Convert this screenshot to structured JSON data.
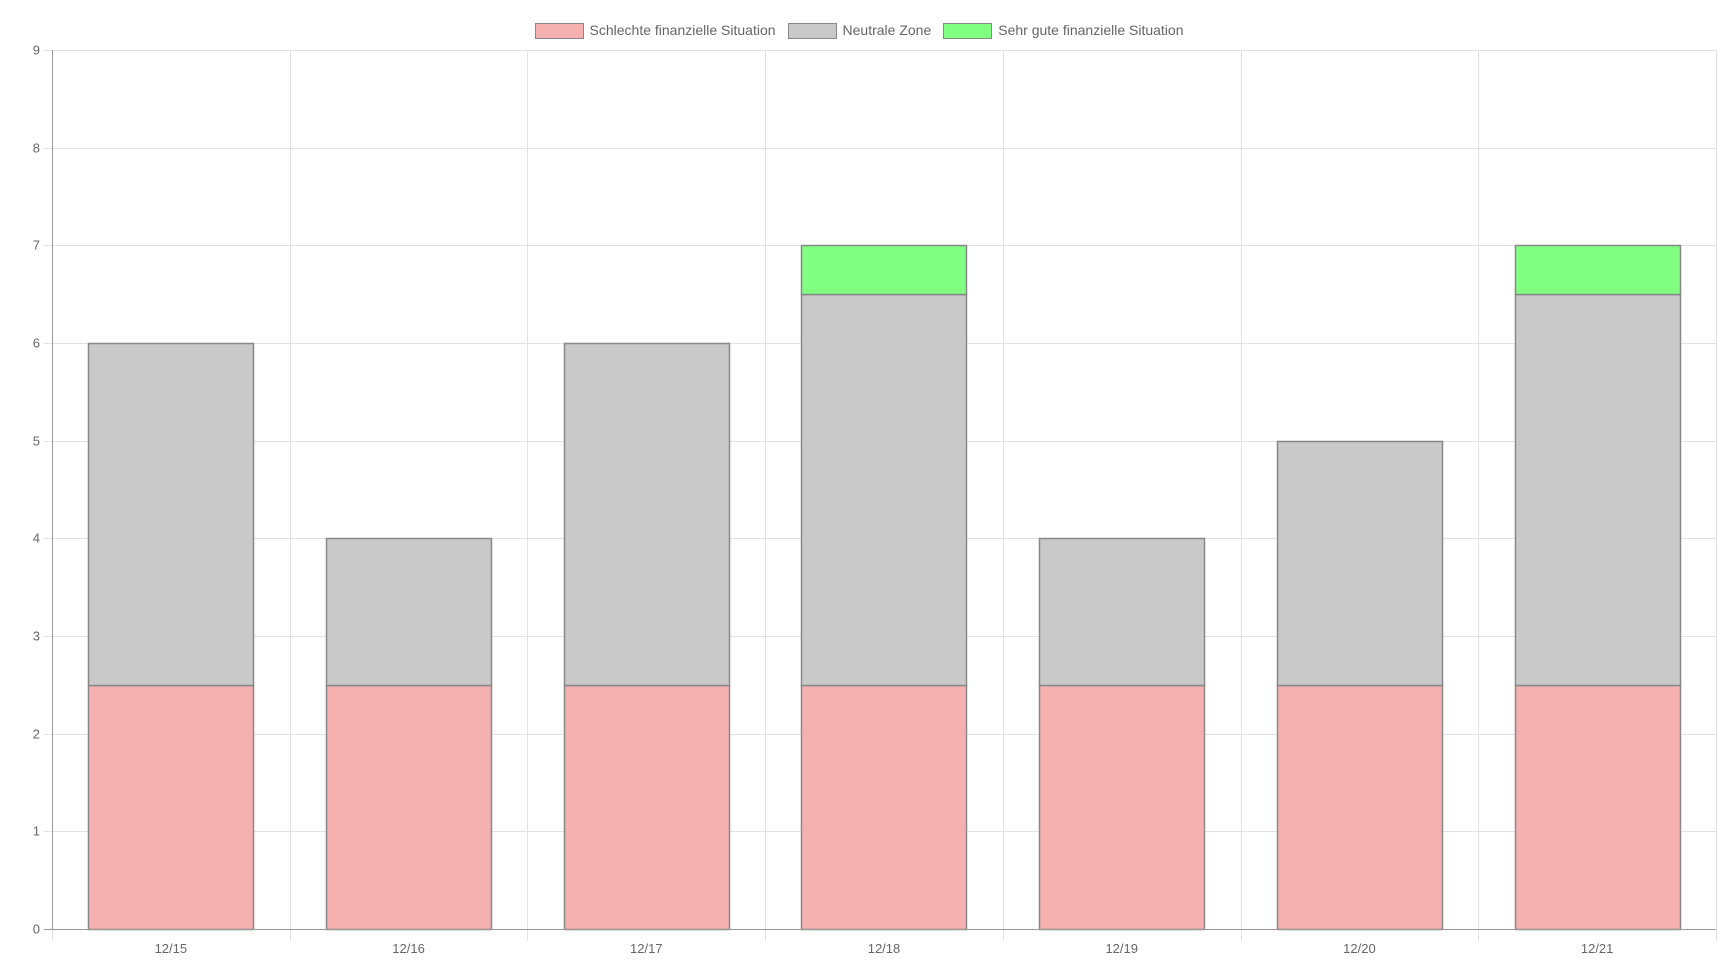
{
  "chart_data": {
    "type": "bar",
    "stacked": true,
    "categories": [
      "12/15",
      "12/16",
      "12/17",
      "12/18",
      "12/19",
      "12/20",
      "12/21"
    ],
    "series": [
      {
        "name": "Schlechte finanzielle Situation",
        "color": "#f5b0b0",
        "values": [
          2.5,
          2.5,
          2.5,
          2.5,
          2.5,
          2.5,
          2.5
        ]
      },
      {
        "name": "Neutrale Zone",
        "color": "#c9c9c9",
        "values": [
          3.5,
          1.5,
          3.5,
          4,
          1.5,
          2.5,
          4
        ]
      },
      {
        "name": "Sehr gute finanzielle Situation",
        "color": "#80ff80",
        "values": [
          0,
          0,
          0,
          0.5,
          0,
          0,
          0.5
        ]
      }
    ],
    "ylim": [
      0,
      9
    ],
    "yticks": [
      0,
      1,
      2,
      3,
      4,
      5,
      6,
      7,
      8,
      9
    ],
    "grid": true,
    "legend_position": "top",
    "bar_border_color": "#888888",
    "grid_color": "#e2e2e2",
    "axis_color": "#999999",
    "tick_label_color": "#666666"
  }
}
